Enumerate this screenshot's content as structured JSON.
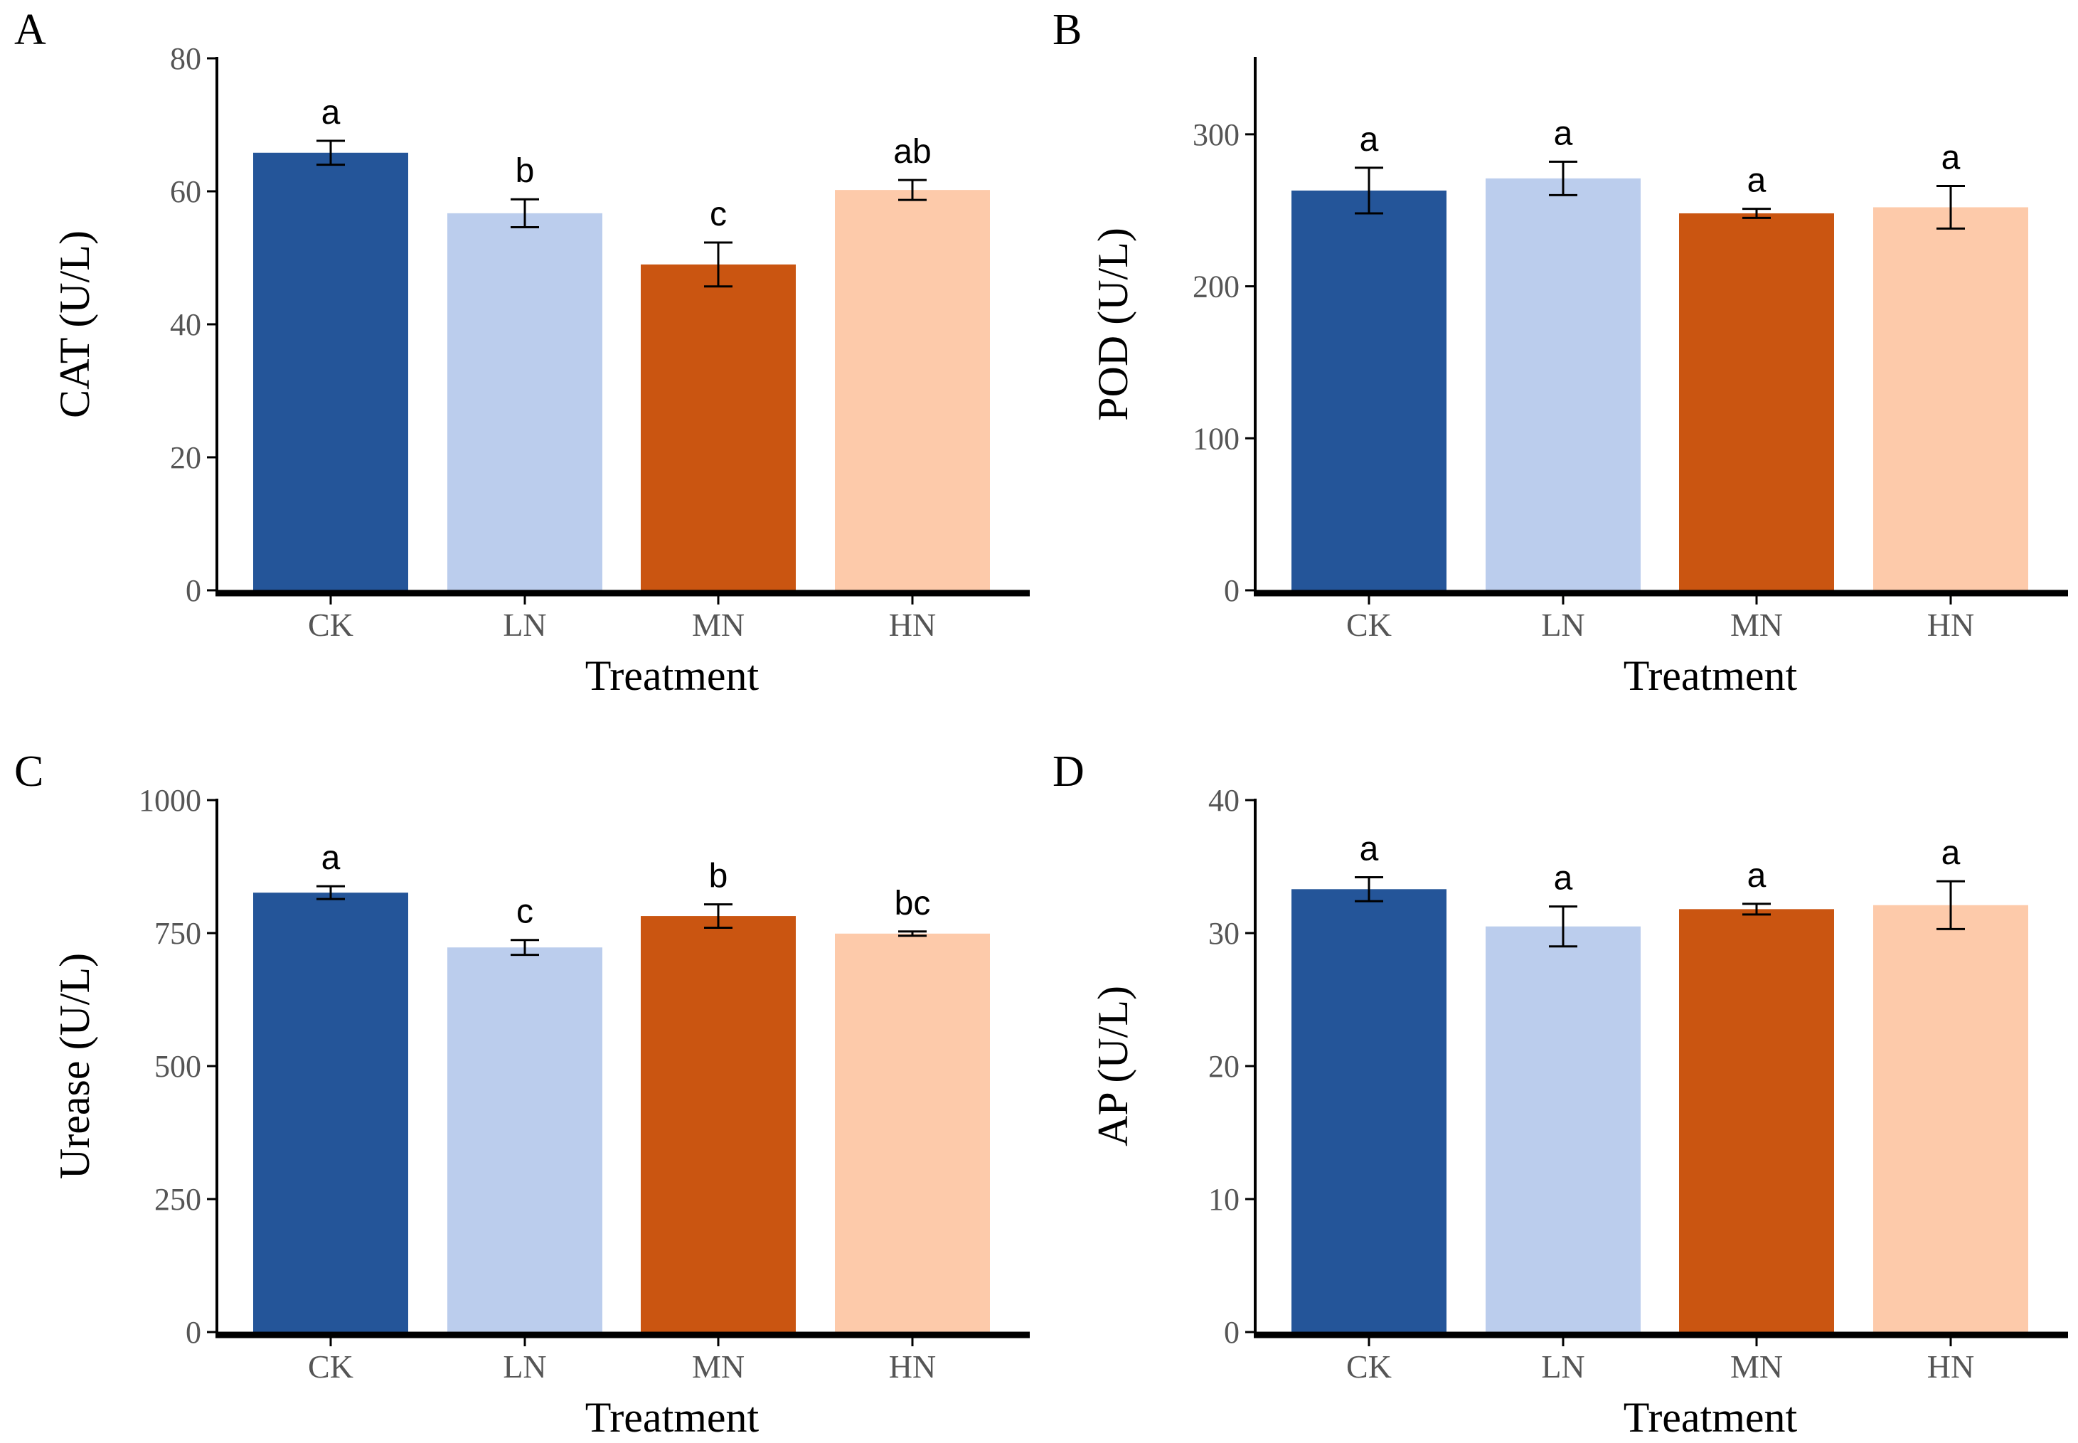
{
  "figure": {
    "palette": {
      "CK": "#245599",
      "LN": "#BBCDED",
      "MN": "#CA5511",
      "HN": "#FDCAAA"
    }
  },
  "chart_data": [
    {
      "panel": "A",
      "type": "bar",
      "categories": [
        "CK",
        "LN",
        "MN",
        "HN"
      ],
      "values": [
        65.8,
        56.7,
        49.0,
        60.2
      ],
      "errors": [
        1.8,
        2.1,
        3.3,
        1.5
      ],
      "labels": [
        "a",
        "b",
        "c",
        "ab"
      ],
      "xlabel": "Treatment",
      "ylabel": "CAT (U/L)",
      "ylim": [
        0,
        80
      ],
      "yticks": [
        0,
        20,
        40,
        60,
        80
      ],
      "grid": false
    },
    {
      "panel": "B",
      "type": "bar",
      "categories": [
        "CK",
        "LN",
        "MN",
        "HN"
      ],
      "values": [
        263,
        271,
        248,
        252
      ],
      "errors": [
        15,
        11,
        3,
        14
      ],
      "labels": [
        "a",
        "a",
        "a",
        "a"
      ],
      "xlabel": "Treatment",
      "ylabel": "POD (U/L)",
      "ylim": [
        0,
        350
      ],
      "yticks": [
        0,
        100,
        200,
        300
      ],
      "grid": false
    },
    {
      "panel": "C",
      "type": "bar",
      "categories": [
        "CK",
        "LN",
        "MN",
        "HN"
      ],
      "values": [
        826,
        723,
        782,
        749
      ],
      "errors": [
        12,
        14,
        22,
        4
      ],
      "labels": [
        "a",
        "c",
        "b",
        "bc"
      ],
      "xlabel": "Treatment",
      "ylabel": "Urease (U/L)",
      "ylim": [
        0,
        1000
      ],
      "yticks": [
        0,
        250,
        500,
        750,
        1000
      ],
      "grid": false
    },
    {
      "panel": "D",
      "type": "bar",
      "categories": [
        "CK",
        "LN",
        "MN",
        "HN"
      ],
      "values": [
        33.3,
        30.5,
        31.8,
        32.1
      ],
      "errors": [
        0.9,
        1.5,
        0.4,
        1.8
      ],
      "labels": [
        "a",
        "a",
        "a",
        "a"
      ],
      "xlabel": "Treatment",
      "ylabel": "AP (U/L)",
      "ylim": [
        0,
        40
      ],
      "yticks": [
        0,
        10,
        20,
        30,
        40
      ],
      "grid": false
    }
  ]
}
